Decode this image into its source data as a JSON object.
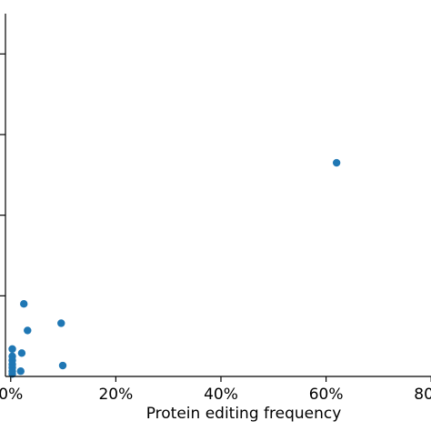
{
  "chart_data": {
    "type": "scatter",
    "title": "",
    "xlabel": "Protein editing frequency",
    "ylabel": "",
    "xlim": [
      -0.01,
      0.9
    ],
    "ylim": [
      0,
      0.9
    ],
    "x_tick_values": [
      0,
      0.2,
      0.4,
      0.6,
      0.8
    ],
    "x_tick_labels": [
      "0%",
      "20%",
      "40%",
      "60%",
      "80%"
    ],
    "y_tick_values": [
      0.2,
      0.4,
      0.6,
      0.8
    ],
    "y_tick_labels": [
      "",
      "",
      "",
      ""
    ],
    "grid": false,
    "legend": "none",
    "marker_color": "#1f77b4",
    "series": [
      {
        "points": [
          {
            "x": 0.62,
            "y": 0.53
          },
          {
            "x": 0.025,
            "y": 0.18
          },
          {
            "x": 0.096,
            "y": 0.132
          },
          {
            "x": 0.032,
            "y": 0.114
          },
          {
            "x": 0.099,
            "y": 0.027
          },
          {
            "x": 0.021,
            "y": 0.058
          },
          {
            "x": 0.019,
            "y": 0.013
          },
          {
            "x": 0.003,
            "y": 0.068
          },
          {
            "x": 0.003,
            "y": 0.05
          },
          {
            "x": 0.003,
            "y": 0.04
          },
          {
            "x": 0.003,
            "y": 0.03
          },
          {
            "x": 0.003,
            "y": 0.022
          },
          {
            "x": 0.003,
            "y": 0.013
          },
          {
            "x": 0.003,
            "y": 0.006
          }
        ]
      }
    ]
  }
}
